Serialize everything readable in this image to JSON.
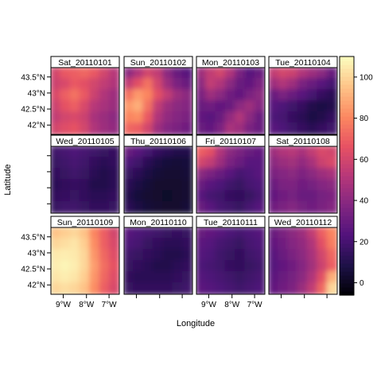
{
  "chart_data": {
    "type": "heatmap",
    "xlabel": "Longitude",
    "ylabel": "Latitude",
    "x_ticks": [
      "9°W",
      "8°W",
      "7°W"
    ],
    "y_ticks": [
      "43.5°N",
      "43°N",
      "42.5°N",
      "42°N"
    ],
    "colorbar": {
      "ticks": [
        0,
        20,
        40,
        60,
        80,
        100
      ],
      "range": [
        -6,
        110
      ],
      "palette": [
        "#000004",
        "#1d1147",
        "#51127c",
        "#822681",
        "#b73779",
        "#e75263",
        "#fc8961",
        "#fec488",
        "#fcfdbf"
      ]
    },
    "grid_cols": 7,
    "grid_rows": 6,
    "panels": [
      {
        "title": "Sat_20110101",
        "values": [
          [
            60,
            68,
            70,
            72,
            68,
            60,
            52
          ],
          [
            58,
            62,
            68,
            65,
            60,
            55,
            50
          ],
          [
            62,
            70,
            75,
            68,
            58,
            50,
            45
          ],
          [
            58,
            66,
            70,
            62,
            52,
            48,
            44
          ],
          [
            55,
            60,
            62,
            58,
            48,
            44,
            40
          ],
          [
            60,
            64,
            66,
            60,
            50,
            45,
            42
          ]
        ]
      },
      {
        "title": "Sun_20110102",
        "values": [
          [
            40,
            50,
            60,
            55,
            40,
            30,
            25
          ],
          [
            55,
            65,
            75,
            60,
            45,
            35,
            30
          ],
          [
            75,
            85,
            80,
            65,
            55,
            45,
            40
          ],
          [
            85,
            90,
            75,
            55,
            45,
            40,
            38
          ],
          [
            80,
            82,
            68,
            50,
            42,
            38,
            35
          ],
          [
            72,
            70,
            60,
            45,
            38,
            35,
            32
          ]
        ]
      },
      {
        "title": "Mon_20110103",
        "values": [
          [
            45,
            55,
            60,
            50,
            35,
            25,
            30
          ],
          [
            40,
            55,
            50,
            40,
            30,
            28,
            35
          ],
          [
            35,
            45,
            40,
            32,
            28,
            35,
            40
          ],
          [
            30,
            32,
            28,
            30,
            40,
            45,
            38
          ],
          [
            28,
            25,
            30,
            42,
            50,
            40,
            30
          ],
          [
            30,
            28,
            35,
            48,
            45,
            35,
            30
          ]
        ]
      },
      {
        "title": "Tue_20110104",
        "values": [
          [
            55,
            60,
            58,
            50,
            45,
            40,
            30
          ],
          [
            45,
            50,
            45,
            35,
            30,
            25,
            20
          ],
          [
            30,
            35,
            30,
            25,
            20,
            15,
            12
          ],
          [
            25,
            22,
            18,
            15,
            10,
            8,
            10
          ],
          [
            22,
            20,
            15,
            12,
            8,
            10,
            14
          ],
          [
            25,
            22,
            18,
            15,
            12,
            15,
            18
          ]
        ]
      },
      {
        "title": "Wed_20110105",
        "values": [
          [
            18,
            20,
            22,
            20,
            18,
            16,
            15
          ],
          [
            16,
            18,
            20,
            18,
            14,
            12,
            14
          ],
          [
            14,
            16,
            18,
            16,
            12,
            10,
            12
          ],
          [
            12,
            14,
            15,
            14,
            10,
            10,
            12
          ],
          [
            14,
            15,
            16,
            14,
            12,
            12,
            14
          ],
          [
            16,
            18,
            18,
            16,
            14,
            14,
            16
          ]
        ]
      },
      {
        "title": "Thu_20110106",
        "values": [
          [
            30,
            25,
            20,
            15,
            12,
            10,
            10
          ],
          [
            22,
            18,
            12,
            8,
            6,
            5,
            6
          ],
          [
            16,
            12,
            8,
            5,
            4,
            4,
            5
          ],
          [
            12,
            8,
            5,
            3,
            3,
            3,
            4
          ],
          [
            10,
            6,
            4,
            3,
            2,
            3,
            4
          ],
          [
            12,
            8,
            5,
            4,
            3,
            3,
            5
          ]
        ]
      },
      {
        "title": "Fri_20110107",
        "values": [
          [
            70,
            65,
            50,
            40,
            35,
            30,
            28
          ],
          [
            60,
            55,
            45,
            35,
            30,
            25,
            25
          ],
          [
            40,
            35,
            30,
            25,
            20,
            22,
            25
          ],
          [
            30,
            25,
            22,
            18,
            16,
            20,
            22
          ],
          [
            25,
            20,
            18,
            15,
            14,
            16,
            20
          ],
          [
            30,
            25,
            20,
            18,
            16,
            20,
            24
          ]
        ]
      },
      {
        "title": "Sat_20110108",
        "values": [
          [
            45,
            50,
            52,
            48,
            55,
            62,
            60
          ],
          [
            40,
            44,
            46,
            42,
            48,
            58,
            62
          ],
          [
            35,
            38,
            40,
            36,
            40,
            45,
            48
          ],
          [
            30,
            35,
            36,
            32,
            34,
            38,
            40
          ],
          [
            28,
            32,
            34,
            30,
            30,
            34,
            36
          ],
          [
            32,
            35,
            38,
            34,
            32,
            35,
            38
          ]
        ]
      },
      {
        "title": "Sun_20110109",
        "values": [
          [
            95,
            98,
            100,
            95,
            80,
            70,
            60
          ],
          [
            100,
            102,
            104,
            98,
            82,
            70,
            62
          ],
          [
            105,
            106,
            105,
            100,
            84,
            72,
            64
          ],
          [
            106,
            108,
            106,
            100,
            86,
            74,
            66
          ],
          [
            104,
            106,
            104,
            98,
            84,
            72,
            64
          ],
          [
            100,
            102,
            100,
            95,
            82,
            70,
            62
          ]
        ]
      },
      {
        "title": "Mon_20110110",
        "values": [
          [
            25,
            22,
            20,
            18,
            16,
            15,
            16
          ],
          [
            22,
            20,
            16,
            14,
            12,
            12,
            14
          ],
          [
            18,
            16,
            14,
            12,
            10,
            10,
            12
          ],
          [
            16,
            14,
            12,
            10,
            10,
            12,
            14
          ],
          [
            14,
            12,
            12,
            12,
            12,
            14,
            16
          ],
          [
            16,
            14,
            14,
            14,
            14,
            16,
            18
          ]
        ]
      },
      {
        "title": "Tue_20110111",
        "values": [
          [
            30,
            28,
            25,
            22,
            20,
            22,
            24
          ],
          [
            26,
            24,
            20,
            18,
            16,
            20,
            22
          ],
          [
            24,
            22,
            18,
            16,
            14,
            18,
            20
          ],
          [
            22,
            20,
            18,
            15,
            14,
            16,
            18
          ],
          [
            24,
            22,
            20,
            18,
            16,
            18,
            20
          ],
          [
            26,
            24,
            22,
            20,
            18,
            20,
            22
          ]
        ]
      },
      {
        "title": "Wed_20110112",
        "values": [
          [
            30,
            35,
            40,
            45,
            55,
            70,
            80
          ],
          [
            28,
            32,
            38,
            42,
            50,
            65,
            78
          ],
          [
            25,
            30,
            35,
            40,
            48,
            60,
            72
          ],
          [
            24,
            28,
            32,
            38,
            46,
            58,
            70
          ],
          [
            26,
            30,
            34,
            40,
            50,
            65,
            90
          ],
          [
            28,
            32,
            36,
            44,
            55,
            72,
            100
          ]
        ]
      }
    ]
  }
}
